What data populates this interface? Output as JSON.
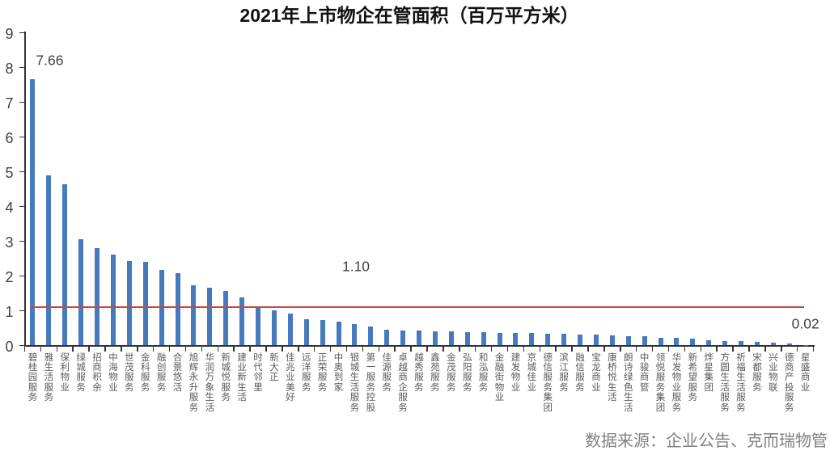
{
  "title": "2021年上市物企在管面积（百万平方米）",
  "source_note": "数据来源：企业公告、克而瑞物管",
  "colors": {
    "bar": "#4679bd",
    "reference_line": "#c44a44",
    "axis": "#333333",
    "tick_label": "#404040",
    "category_label": "#595959",
    "annotation": "#404040",
    "title": "#111111",
    "source_note": "#808080",
    "background": "#ffffff"
  },
  "chart_data": {
    "type": "bar",
    "title": "2021年上市物企在管面积（百万平方米）",
    "xlabel": "",
    "ylabel": "",
    "ylim": [
      0,
      9
    ],
    "ytick_interval": 1,
    "grid": false,
    "legend": false,
    "categories": [
      "碧桂园服务",
      "雅生活服务",
      "保利物业",
      "绿城服务",
      "招商积余",
      "中海物业",
      "世茂服务",
      "金科服务",
      "融创服务",
      "合景悠活",
      "旭辉永升服务",
      "华润万象生活",
      "新城悦服务",
      "建业新生活",
      "时代邻里",
      "新大正",
      "佳兆业美好",
      "远洋服务",
      "正荣服务",
      "中奥到家",
      "银城生活服务",
      "第一服务控股",
      "佳源服务",
      "卓越商企服务",
      "越秀服务",
      "鑫苑服务",
      "金茂服务",
      "弘阳服务",
      "和泓服务",
      "金融街物业",
      "建发物业",
      "京城佳业",
      "德信服务集团",
      "滨江服务",
      "融信服务",
      "宝龙商业",
      "康桥悦生活",
      "朗诗绿色生活",
      "中骏商管",
      "领悦服务集团",
      "华发物业服务",
      "新希望服务",
      "烨星集团",
      "方圆生活服务",
      "祈福生活服务",
      "宋都服务",
      "兴业物联",
      "德商产投服务",
      "星盛商业"
    ],
    "values": [
      7.66,
      4.89,
      4.65,
      3.06,
      2.81,
      2.61,
      2.42,
      2.4,
      2.17,
      2.07,
      1.74,
      1.67,
      1.56,
      1.39,
      1.08,
      1.02,
      0.93,
      0.76,
      0.73,
      0.68,
      0.61,
      0.54,
      0.45,
      0.44,
      0.42,
      0.41,
      0.4,
      0.39,
      0.38,
      0.37,
      0.36,
      0.35,
      0.34,
      0.33,
      0.32,
      0.31,
      0.28,
      0.27,
      0.26,
      0.23,
      0.22,
      0.19,
      0.14,
      0.13,
      0.12,
      0.11,
      0.09,
      0.06,
      0.02
    ],
    "reference_line": {
      "value": 1.1,
      "label": "1.10",
      "color": "#c44a44"
    },
    "annotations": [
      {
        "category_index": 0,
        "text": "7.66"
      },
      {
        "category_index": 48,
        "text": "0.02"
      }
    ]
  }
}
